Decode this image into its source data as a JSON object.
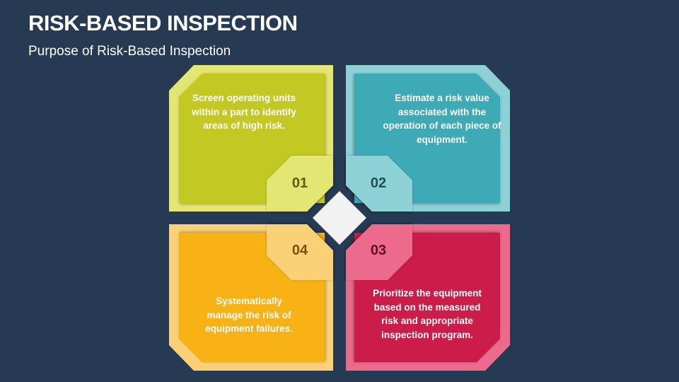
{
  "header": {
    "title": "RISK-BASED INSPECTION",
    "subtitle": "Purpose of Risk-Based Inspection"
  },
  "colors": {
    "background": "#263a54",
    "center": "#f2f2f2"
  },
  "quadrants": [
    {
      "number": "01",
      "text": "Screen operating units within a part to identify areas of high risk.",
      "outer": "#e3e672",
      "inner": "#c3c920",
      "number_color": "#5b5e0c"
    },
    {
      "number": "02",
      "text": "Estimate a risk value associated with the operation of each piece of equipment.",
      "outer": "#8dd0d6",
      "inner": "#3eaab6",
      "number_color": "#1c4e54"
    },
    {
      "number": "03",
      "text": "Prioritize the equipment based on the measured risk and appropriate inspection program.",
      "outer": "#ec6a8c",
      "inner": "#cc1a48",
      "number_color": "#5e0c22"
    },
    {
      "number": "04",
      "text": "Systematically manage the risk of equipment failures.",
      "outer": "#fbd178",
      "inner": "#f8b219",
      "number_color": "#7a5200"
    }
  ]
}
